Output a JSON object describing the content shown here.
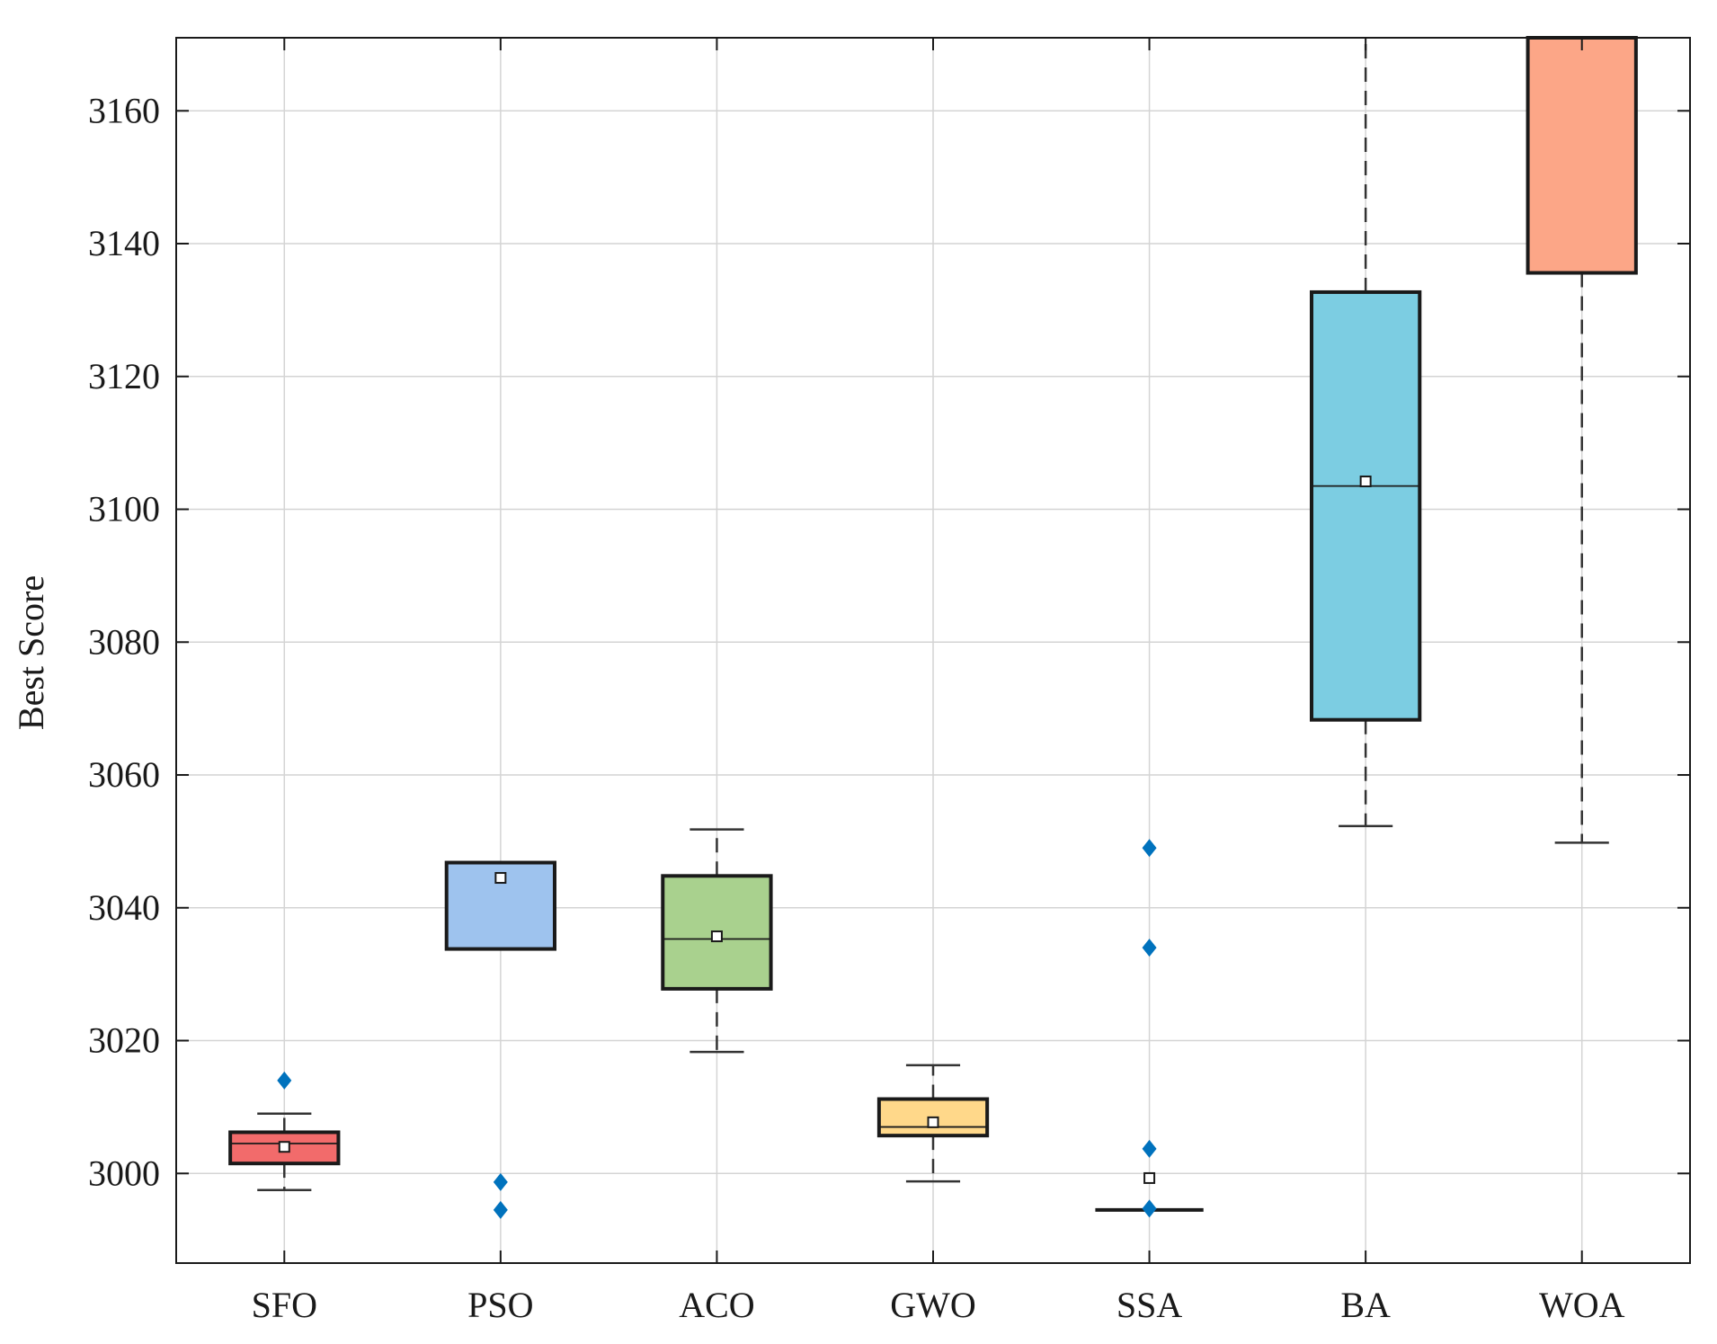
{
  "chart_data": {
    "type": "boxplot",
    "title": "",
    "xlabel": "",
    "ylabel": "Best Score",
    "ylim": [
      2986.5,
      3171
    ],
    "yticks": [
      3000,
      3020,
      3040,
      3060,
      3080,
      3100,
      3120,
      3140,
      3160
    ],
    "grid": true,
    "categories": [
      "SFO",
      "PSO",
      "ACO",
      "GWO",
      "SSA",
      "BA",
      "WOA"
    ],
    "series": [
      {
        "name": "SFO",
        "color": "#f26b6b",
        "q1": 3001.5,
        "median": 3004.5,
        "q3": 3006.2,
        "whisker_low": 2997.5,
        "whisker_high": 3009,
        "mean": 3004,
        "outliers": [
          3014
        ]
      },
      {
        "name": "PSO",
        "color": "#9ec3ee",
        "q1": 3033.8,
        "median": 3033.8,
        "q3": 3046.8,
        "whisker_low": 3033.8,
        "whisker_high": 3046.8,
        "mean": 3044.5,
        "outliers": [
          2998.7,
          2994.5
        ]
      },
      {
        "name": "ACO",
        "color": "#a9d18e",
        "q1": 3027.8,
        "median": 3035.3,
        "q3": 3044.8,
        "whisker_low": 3018.3,
        "whisker_high": 3051.8,
        "mean": 3035.7,
        "outliers": []
      },
      {
        "name": "GWO",
        "color": "#ffd88a",
        "q1": 3005.7,
        "median": 3007,
        "q3": 3011.2,
        "whisker_low": 2998.8,
        "whisker_high": 3016.3,
        "mean": 3007.7,
        "outliers": []
      },
      {
        "name": "SSA",
        "color": "#d9d9d9",
        "q1": 2994.5,
        "median": 2994.5,
        "q3": 2994.5,
        "whisker_low": 2994.5,
        "whisker_high": 2994.5,
        "mean": 2999.3,
        "outliers": [
          3049,
          3034,
          3003.7,
          2994.7
        ]
      },
      {
        "name": "BA",
        "color": "#7ccde2",
        "q1": 3068.3,
        "median": 3103.5,
        "q3": 3132.7,
        "whisker_low": 3052.3,
        "whisker_high": 3171,
        "mean": 3104.2,
        "outliers": []
      },
      {
        "name": "WOA",
        "color": "#fca687",
        "q1": 3135.6,
        "median": 3171,
        "q3": 3171,
        "whisker_low": 3049.8,
        "whisker_high": 3171,
        "mean": null,
        "outliers": []
      }
    ],
    "outlier_color": "#0072bd",
    "mean_marker": "square"
  }
}
